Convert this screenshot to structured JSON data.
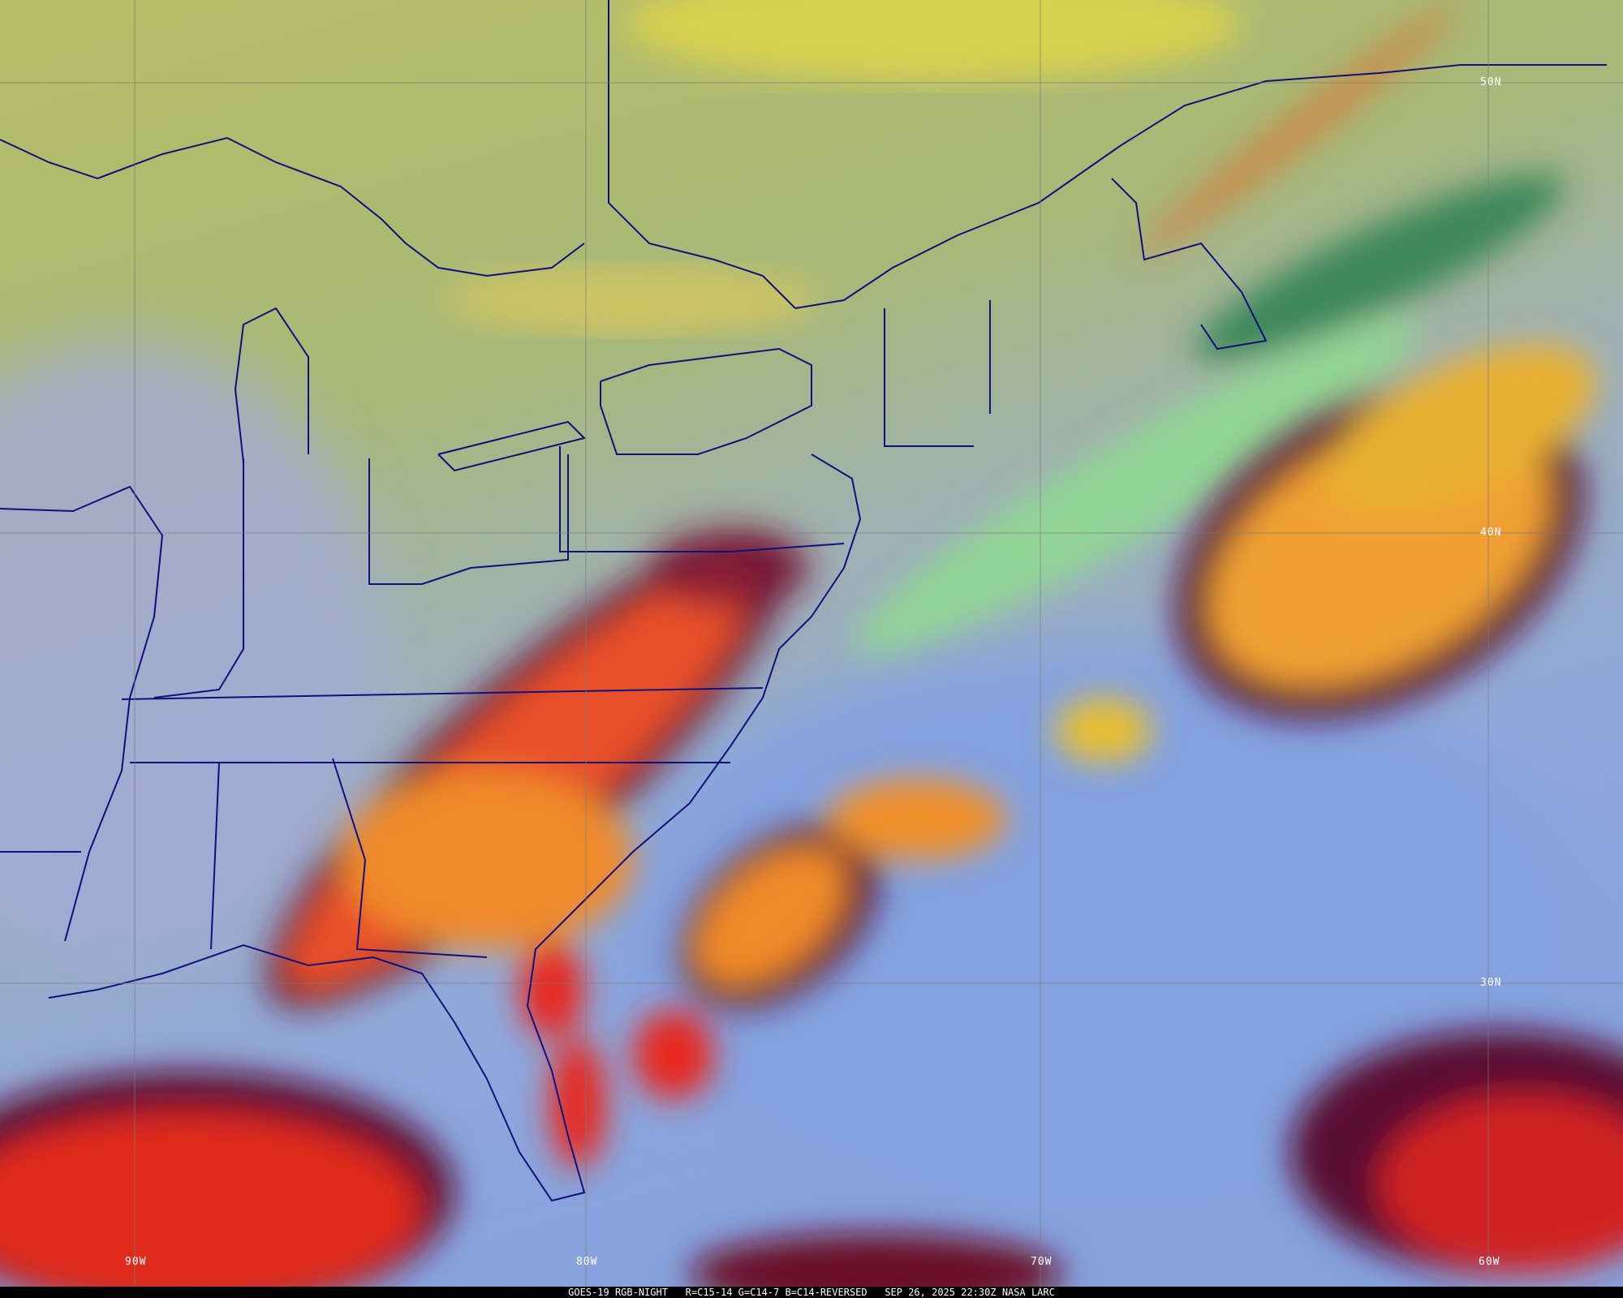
{
  "caption": {
    "satellite": "GOES-19",
    "product": "RGB-NIGHT",
    "recipe": "R=C15-14 G=C14-7 B=C14-REVERSED",
    "datetime": "SEP 26, 2025 22:30Z",
    "source": "NASA LARC"
  },
  "grid": {
    "longitude_labels": [
      "90W",
      "80W",
      "70W",
      "60W"
    ],
    "latitude_labels": [
      "50N",
      "40N",
      "30N"
    ]
  },
  "colors": {
    "land_north": "#b4bc68",
    "land_south": "#9fa9d6",
    "ocean": "#87a4dc",
    "deep_convection": "#e0281c",
    "mid_cloud": "#f0a030",
    "cirrus_edge": "#5a1030",
    "low_cloud": "#8ed890",
    "boundaries": "#10107a"
  }
}
